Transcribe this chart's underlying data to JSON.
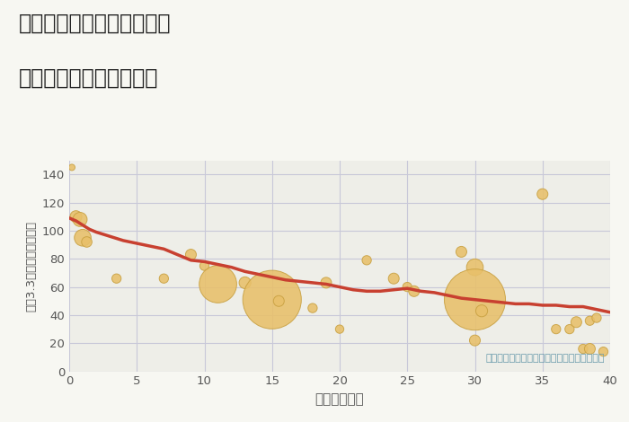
{
  "title_line1": "奈良県奈良市南半田西町の",
  "title_line2": "築年数別中古戸建て価格",
  "xlabel": "築年数（年）",
  "ylabel": "坪（3.3㎡）単価（万円）",
  "fig_bg_color": "#f7f7f2",
  "plot_bg_color": "#eeeee8",
  "grid_color": "#c8c8d8",
  "bubble_color": "#e8c06a",
  "bubble_edge_color": "#c8a040",
  "line_color": "#c84030",
  "annotation_color": "#6699aa",
  "tick_color": "#555555",
  "xlim": [
    0,
    40
  ],
  "ylim": [
    0,
    150
  ],
  "xticks": [
    0,
    5,
    10,
    15,
    20,
    25,
    30,
    35,
    40
  ],
  "yticks": [
    0,
    20,
    40,
    60,
    80,
    100,
    120,
    140
  ],
  "scatter_x": [
    0.2,
    0.5,
    0.8,
    1.0,
    1.3,
    3.5,
    7,
    9,
    10,
    11,
    13,
    15,
    15.5,
    18,
    19,
    20,
    22,
    24,
    25,
    25.5,
    29,
    30,
    30,
    30,
    30.5,
    35,
    36,
    37,
    37.5,
    38,
    38.5,
    38.5,
    39,
    39.5
  ],
  "scatter_y": [
    145,
    110,
    108,
    95,
    92,
    66,
    66,
    83,
    75,
    62,
    63,
    51,
    50,
    45,
    63,
    30,
    79,
    66,
    60,
    57,
    85,
    74,
    51,
    22,
    43,
    126,
    30,
    30,
    35,
    16,
    16,
    36,
    38,
    14
  ],
  "scatter_size": [
    25,
    90,
    130,
    180,
    70,
    55,
    55,
    75,
    55,
    900,
    90,
    2200,
    75,
    55,
    75,
    45,
    55,
    75,
    55,
    75,
    75,
    180,
    2400,
    75,
    90,
    75,
    55,
    55,
    75,
    55,
    75,
    55,
    55,
    55
  ],
  "trend_x": [
    0,
    0.5,
    1,
    1.5,
    2,
    3,
    4,
    5,
    6,
    7,
    8,
    9,
    10,
    11,
    12,
    13,
    14,
    15,
    16,
    17,
    18,
    19,
    20,
    21,
    22,
    23,
    24,
    25,
    26,
    27,
    28,
    29,
    30,
    31,
    32,
    33,
    34,
    35,
    36,
    37,
    38,
    39,
    40
  ],
  "trend_y": [
    109,
    107,
    104,
    101,
    99,
    96,
    93,
    91,
    89,
    87,
    83,
    79,
    78,
    76,
    74,
    71,
    69,
    67,
    65,
    64,
    63,
    62,
    60,
    58,
    57,
    57,
    58,
    59,
    57,
    56,
    54,
    52,
    51,
    50,
    49,
    48,
    48,
    47,
    47,
    46,
    46,
    44,
    42
  ],
  "annotation": "円の大きさは、取引のあった物件面積を示す"
}
